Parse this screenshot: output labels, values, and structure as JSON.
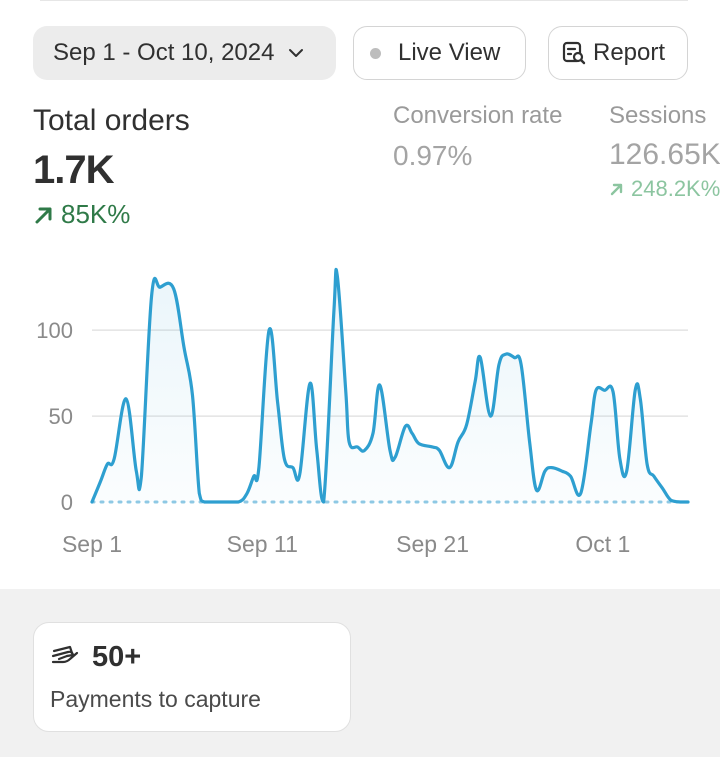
{
  "header": {
    "date_range": "Sep 1 - Oct 10, 2024",
    "live_view": "Live View",
    "report": "Report"
  },
  "metrics": {
    "total_orders": {
      "label": "Total orders",
      "value": "1.7K",
      "change": "85K%"
    },
    "conversion_rate": {
      "label": "Conversion rate",
      "value": "0.97%"
    },
    "sessions": {
      "label": "Sessions",
      "value": "126.65K",
      "change": "248.2K%"
    }
  },
  "colors": {
    "line": "#2e9fd0",
    "positive": "#2f7a48",
    "positive_muted": "#8cc5a0",
    "baseline_dots": "#8fc9e4"
  },
  "chart_data": {
    "type": "area",
    "x_tick_labels": [
      "Sep 1",
      "Sep 11",
      "Sep 21",
      "Oct 1"
    ],
    "x_tick_days": [
      0,
      10,
      20,
      30
    ],
    "y_ticks": [
      0,
      50,
      100
    ],
    "ylim": [
      0,
      135
    ],
    "series": [
      {
        "values": [
          [
            0,
            0
          ],
          [
            0.5,
            12
          ],
          [
            0.9,
            22
          ],
          [
            1.3,
            25
          ],
          [
            2.0,
            60
          ],
          [
            2.6,
            18
          ],
          [
            2.9,
            15
          ],
          [
            3.5,
            120
          ],
          [
            4.0,
            125
          ],
          [
            4.8,
            124
          ],
          [
            5.4,
            90
          ],
          [
            5.9,
            62
          ],
          [
            6.3,
            5
          ],
          [
            6.6,
            0
          ],
          [
            7.5,
            0
          ],
          [
            8.6,
            0
          ],
          [
            9.1,
            5
          ],
          [
            9.5,
            15
          ],
          [
            9.8,
            20
          ],
          [
            10.4,
            100
          ],
          [
            10.9,
            58
          ],
          [
            11.3,
            25
          ],
          [
            11.8,
            20
          ],
          [
            12.2,
            16
          ],
          [
            12.8,
            69
          ],
          [
            13.2,
            30
          ],
          [
            13.6,
            0
          ],
          [
            14.2,
            110
          ],
          [
            14.4,
            132
          ],
          [
            14.9,
            65
          ],
          [
            15.1,
            35
          ],
          [
            15.6,
            32
          ],
          [
            16.0,
            30
          ],
          [
            16.5,
            40
          ],
          [
            16.9,
            68
          ],
          [
            17.5,
            30
          ],
          [
            17.8,
            26
          ],
          [
            18.4,
            44
          ],
          [
            18.8,
            40
          ],
          [
            19.2,
            34
          ],
          [
            20.0,
            32
          ],
          [
            20.4,
            30
          ],
          [
            21.0,
            20
          ],
          [
            21.5,
            35
          ],
          [
            22.0,
            45
          ],
          [
            22.5,
            70
          ],
          [
            22.8,
            84
          ],
          [
            23.4,
            50
          ],
          [
            23.9,
            80
          ],
          [
            24.3,
            86
          ],
          [
            24.8,
            84
          ],
          [
            25.2,
            80
          ],
          [
            25.7,
            35
          ],
          [
            26.1,
            7
          ],
          [
            26.6,
            18
          ],
          [
            27.0,
            20
          ],
          [
            27.6,
            18
          ],
          [
            28.1,
            15
          ],
          [
            28.7,
            5
          ],
          [
            29.3,
            45
          ],
          [
            29.6,
            65
          ],
          [
            30.1,
            65
          ],
          [
            30.6,
            64
          ],
          [
            31.0,
            25
          ],
          [
            31.4,
            18
          ],
          [
            31.9,
            65
          ],
          [
            32.2,
            60
          ],
          [
            32.6,
            22
          ],
          [
            33.0,
            15
          ],
          [
            33.5,
            8
          ],
          [
            34.0,
            1
          ],
          [
            34.6,
            0
          ],
          [
            35.0,
            0
          ]
        ]
      },
      {
        "values": [
          [
            0,
            0
          ],
          [
            35,
            0
          ]
        ]
      }
    ]
  },
  "payments": {
    "count": "50+",
    "label": "Payments to capture"
  }
}
